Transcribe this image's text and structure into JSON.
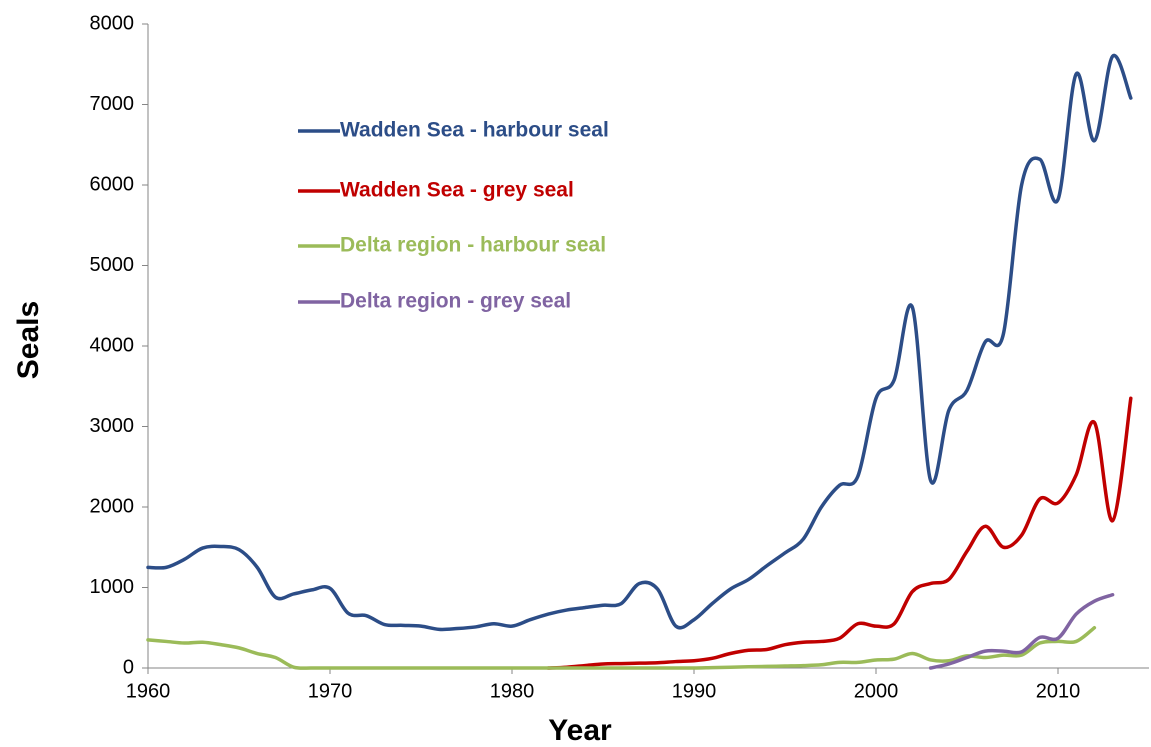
{
  "chart_data": {
    "type": "line",
    "x_label": "Year",
    "y_label": "Seals",
    "x": [
      1960,
      1961,
      1962,
      1963,
      1964,
      1965,
      1966,
      1967,
      1968,
      1969,
      1970,
      1971,
      1972,
      1973,
      1974,
      1975,
      1976,
      1977,
      1978,
      1979,
      1980,
      1981,
      1982,
      1983,
      1984,
      1985,
      1986,
      1987,
      1988,
      1989,
      1990,
      1991,
      1992,
      1993,
      1994,
      1995,
      1996,
      1997,
      1998,
      1999,
      2000,
      2001,
      2002,
      2003,
      2004,
      2005,
      2006,
      2007,
      2008,
      2009,
      2010,
      2011,
      2012,
      2013,
      2014
    ],
    "series": [
      {
        "name": "Wadden Sea - harbour seal",
        "color": "#2c4d87",
        "values": [
          1250,
          1250,
          1350,
          1490,
          1510,
          1470,
          1250,
          880,
          920,
          970,
          990,
          680,
          650,
          540,
          530,
          520,
          480,
          490,
          510,
          550,
          520,
          600,
          670,
          720,
          750,
          780,
          800,
          1050,
          980,
          520,
          600,
          800,
          980,
          1100,
          1270,
          1430,
          1600,
          2000,
          2270,
          2380,
          3350,
          3580,
          4480,
          2330,
          3200,
          3450,
          4050,
          4150,
          6000,
          6320,
          5820,
          7380,
          6550,
          7600,
          7080
        ]
      },
      {
        "name": "Wadden Sea - grey seal",
        "color": "#c00000",
        "values": [
          null,
          null,
          null,
          null,
          null,
          null,
          null,
          null,
          null,
          null,
          null,
          null,
          null,
          null,
          null,
          null,
          null,
          null,
          null,
          null,
          null,
          null,
          0,
          10,
          30,
          50,
          55,
          60,
          65,
          80,
          90,
          120,
          180,
          220,
          230,
          290,
          320,
          330,
          370,
          550,
          520,
          550,
          950,
          1050,
          1100,
          1450,
          1760,
          1500,
          1650,
          2100,
          2050,
          2400,
          3050,
          1830,
          3350
        ]
      },
      {
        "name": "Delta region - harbour seal",
        "color": "#9bbb59",
        "values": [
          350,
          330,
          310,
          320,
          290,
          250,
          180,
          130,
          10,
          0,
          0,
          0,
          0,
          0,
          0,
          0,
          0,
          0,
          0,
          0,
          0,
          0,
          0,
          0,
          0,
          0,
          0,
          0,
          0,
          0,
          0,
          5,
          10,
          15,
          20,
          25,
          30,
          40,
          70,
          70,
          100,
          110,
          180,
          100,
          90,
          150,
          130,
          160,
          160,
          310,
          330,
          330,
          500,
          null,
          null
        ]
      },
      {
        "name": "Delta region - grey seal",
        "color": "#8064a2",
        "values": [
          null,
          null,
          null,
          null,
          null,
          null,
          null,
          null,
          null,
          null,
          null,
          null,
          null,
          null,
          null,
          null,
          null,
          null,
          null,
          null,
          null,
          null,
          null,
          null,
          null,
          null,
          null,
          null,
          null,
          null,
          null,
          null,
          null,
          null,
          null,
          null,
          null,
          null,
          null,
          null,
          null,
          null,
          null,
          0,
          50,
          130,
          210,
          210,
          200,
          380,
          370,
          670,
          830,
          910,
          null
        ]
      }
    ],
    "xlim": [
      1960,
      2015
    ],
    "xticks": [
      1960,
      1970,
      1980,
      1990,
      2000,
      2010
    ],
    "ylim": [
      0,
      8000
    ],
    "yticks": [
      0,
      1000,
      2000,
      3000,
      4000,
      5000,
      6000,
      7000,
      8000
    ],
    "grid": false,
    "legend": "upper left"
  }
}
